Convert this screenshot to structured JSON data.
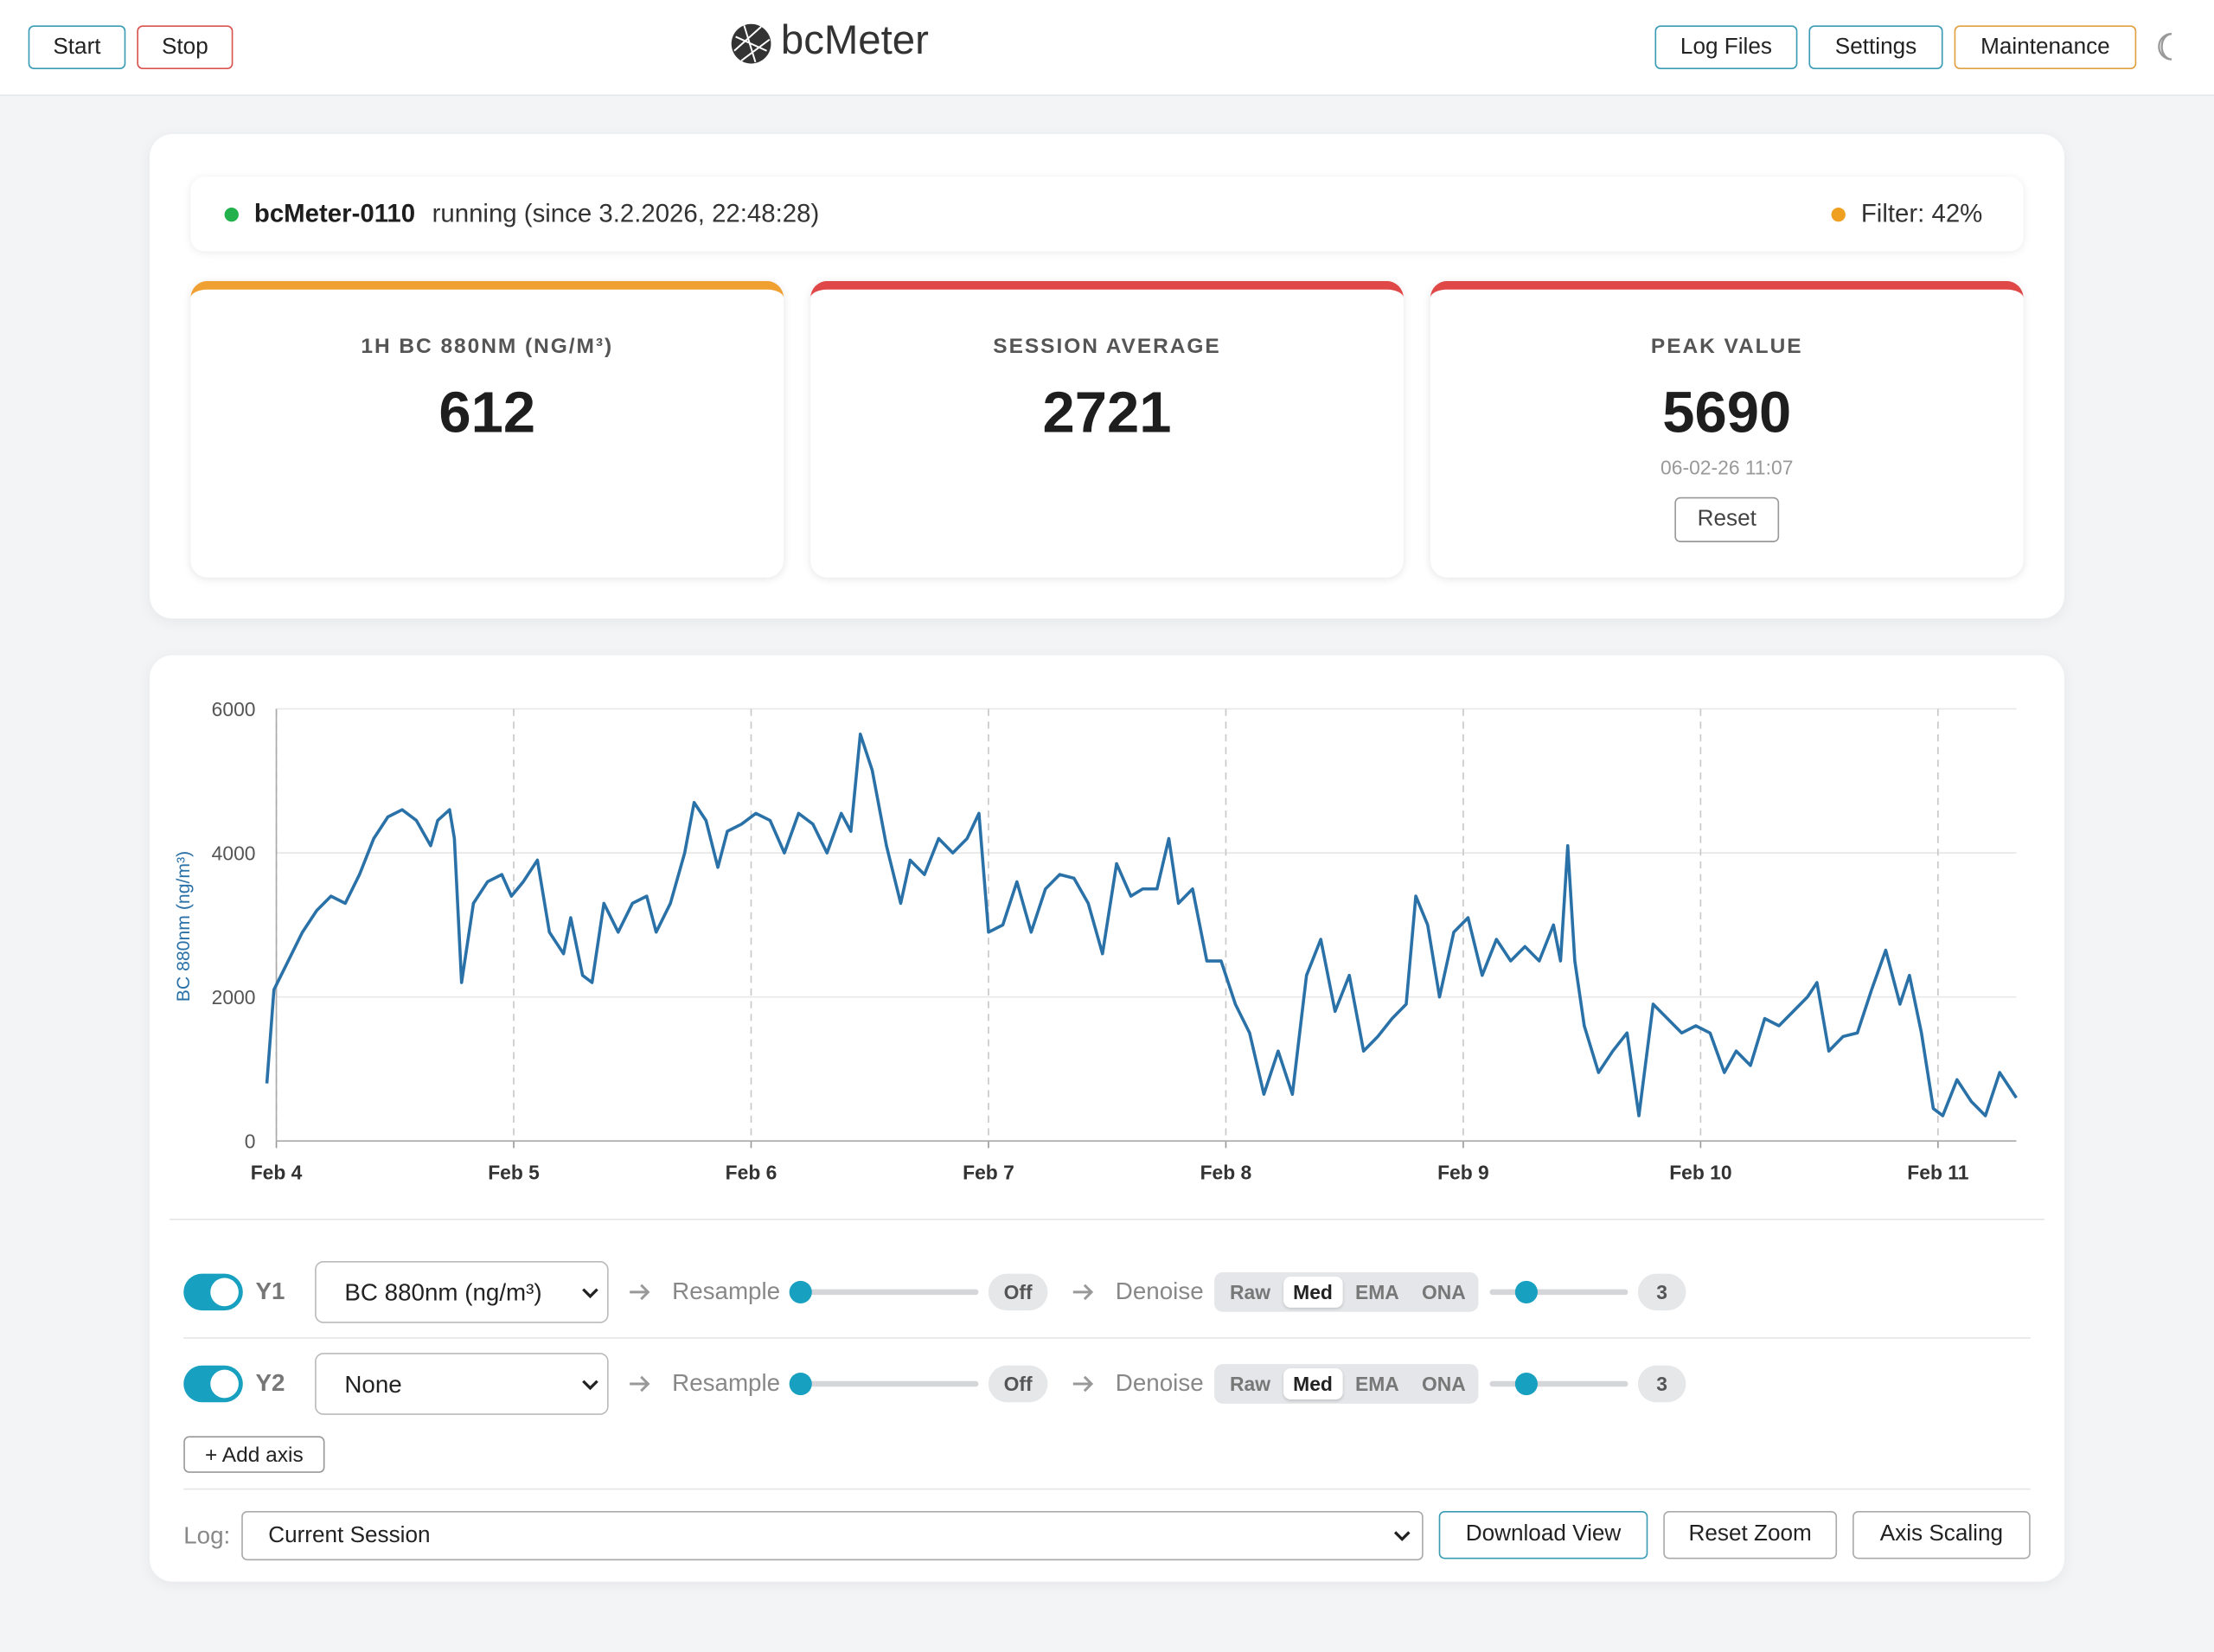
{
  "header": {
    "buttons_left": [
      "Start",
      "Stop"
    ],
    "brand": "bcMeter",
    "buttons_right": [
      "Log Files",
      "Settings",
      "Maintenance"
    ]
  },
  "status": {
    "device": "bcMeter-0110",
    "state": "running (since 3.2.2026, 22:48:28)",
    "filter": "Filter: 42%"
  },
  "cards": [
    {
      "label": "1H BC 880NM (NG/M³)",
      "value": 612
    },
    {
      "label": "SESSION AVERAGE",
      "value": 2721
    },
    {
      "label": "PEAK VALUE",
      "value": 5690,
      "timestamp": "06-02-26 11:07",
      "button": "Reset"
    }
  ],
  "chart_data": {
    "type": "line",
    "y_label": "BC 880nm (ng/m³)",
    "color": "#2a71a8",
    "grid": true,
    "xlim": [
      -0.04,
      7.33
    ],
    "xticks": [
      {
        "value": 0,
        "label": "Feb 4"
      },
      {
        "value": 1,
        "label": "Feb 5"
      },
      {
        "value": 2,
        "label": "Feb 6"
      },
      {
        "value": 3,
        "label": "Feb 7"
      },
      {
        "value": 4,
        "label": "Feb 8"
      },
      {
        "value": 5,
        "label": "Feb 9"
      },
      {
        "value": 6,
        "label": "Feb 10"
      },
      {
        "value": 7,
        "label": "Feb 11"
      }
    ],
    "ylim": [
      0,
      6000
    ],
    "yticks": [
      0,
      2000,
      4000,
      6000
    ],
    "x": [
      -0.04,
      -0.01,
      0.05,
      0.11,
      0.17,
      0.23,
      0.29,
      0.35,
      0.41,
      0.47,
      0.53,
      0.59,
      0.65,
      0.68,
      0.73,
      0.75,
      0.78,
      0.83,
      0.89,
      0.95,
      0.99,
      1.04,
      1.1,
      1.15,
      1.21,
      1.24,
      1.29,
      1.33,
      1.38,
      1.44,
      1.5,
      1.56,
      1.6,
      1.66,
      1.72,
      1.76,
      1.81,
      1.86,
      1.9,
      1.96,
      2.02,
      2.08,
      2.14,
      2.2,
      2.26,
      2.32,
      2.38,
      2.42,
      2.46,
      2.51,
      2.57,
      2.63,
      2.67,
      2.73,
      2.79,
      2.85,
      2.91,
      2.96,
      3.0,
      3.06,
      3.12,
      3.18,
      3.24,
      3.3,
      3.36,
      3.42,
      3.48,
      3.54,
      3.6,
      3.65,
      3.71,
      3.76,
      3.8,
      3.86,
      3.92,
      3.98,
      4.04,
      4.1,
      4.16,
      4.22,
      4.28,
      4.34,
      4.4,
      4.46,
      4.52,
      4.58,
      4.64,
      4.7,
      4.76,
      4.8,
      4.85,
      4.9,
      4.96,
      5.02,
      5.08,
      5.14,
      5.2,
      5.26,
      5.32,
      5.38,
      5.41,
      5.44,
      5.47,
      5.51,
      5.57,
      5.63,
      5.69,
      5.74,
      5.8,
      5.86,
      5.92,
      5.98,
      6.04,
      6.1,
      6.15,
      6.21,
      6.27,
      6.33,
      6.39,
      6.45,
      6.49,
      6.54,
      6.6,
      6.66,
      6.72,
      6.78,
      6.84,
      6.88,
      6.93,
      6.98,
      7.02,
      7.08,
      7.14,
      7.2,
      7.26,
      7.33
    ],
    "values": [
      800,
      2100,
      2500,
      2900,
      3200,
      3400,
      3300,
      3700,
      4200,
      4500,
      4600,
      4450,
      4100,
      4450,
      4600,
      4200,
      2200,
      3300,
      3600,
      3700,
      3400,
      3600,
      3900,
      2900,
      2600,
      3100,
      2300,
      2200,
      3300,
      2900,
      3300,
      3400,
      2900,
      3300,
      4000,
      4700,
      4450,
      3800,
      4300,
      4400,
      4550,
      4450,
      4000,
      4550,
      4400,
      4000,
      4550,
      4300,
      5650,
      5150,
      4100,
      3300,
      3900,
      3700,
      4200,
      4000,
      4200,
      4550,
      2900,
      3000,
      3600,
      2900,
      3500,
      3700,
      3650,
      3300,
      2600,
      3850,
      3400,
      3500,
      3500,
      4200,
      3300,
      3500,
      2500,
      2500,
      1900,
      1500,
      650,
      1250,
      650,
      2300,
      2800,
      1800,
      2300,
      1250,
      1450,
      1700,
      1900,
      3400,
      3000,
      2000,
      2900,
      3100,
      2300,
      2800,
      2500,
      2700,
      2500,
      3000,
      2500,
      4100,
      2500,
      1600,
      950,
      1250,
      1500,
      350,
      1900,
      1700,
      1500,
      1600,
      1500,
      950,
      1250,
      1050,
      1700,
      1600,
      1800,
      2000,
      2200,
      1250,
      1450,
      1500,
      2100,
      2650,
      1900,
      2300,
      1500,
      450,
      350,
      850,
      550,
      350,
      950,
      600
    ]
  },
  "controls": {
    "axes": [
      {
        "label": "Y1",
        "enabled": true,
        "select": "BC 880nm (ng/m³)",
        "resample_label": "Resample",
        "resample_value": "Off",
        "denoise_label": "Denoise",
        "modes": [
          "Raw",
          "Med",
          "EMA",
          "ONA"
        ],
        "active_mode": 1,
        "denoise_value": 3
      },
      {
        "label": "Y2",
        "enabled": true,
        "select": "None",
        "resample_label": "Resample",
        "resample_value": "Off",
        "denoise_label": "Denoise",
        "modes": [
          "Raw",
          "Med",
          "EMA",
          "ONA"
        ],
        "active_mode": 1,
        "denoise_value": 3
      }
    ],
    "add_axis": "+ Add axis"
  },
  "log": {
    "label": "Log:",
    "select": "Current Session",
    "buttons": [
      "Download View",
      "Reset Zoom",
      "Axis Scaling"
    ]
  }
}
